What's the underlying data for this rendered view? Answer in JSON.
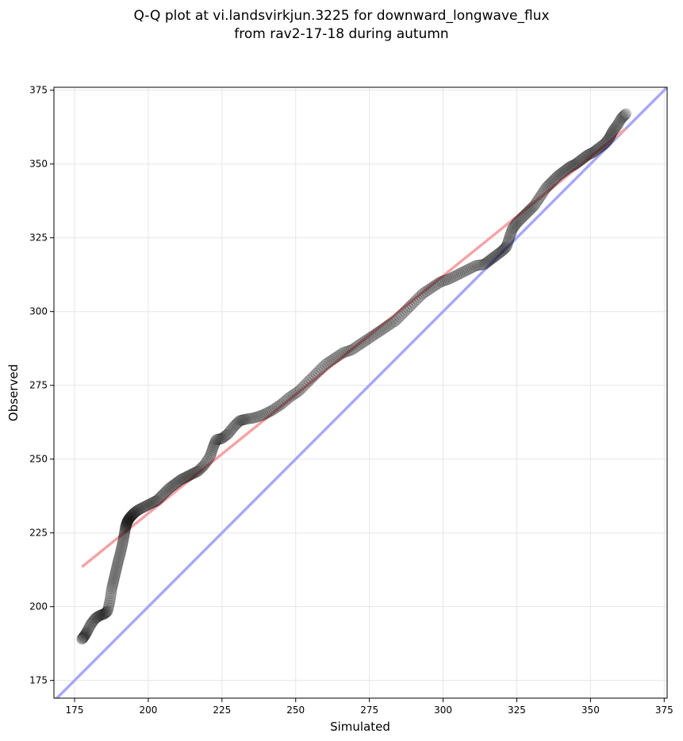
{
  "chart_data": {
    "type": "scatter",
    "title_line1": "Q-Q plot at vi.landsvirkjun.3225 for downward_longwave_flux",
    "title_line2": "from rav2-17-18 during autumn",
    "xlabel": "Simulated",
    "ylabel": "Observed",
    "xlim": [
      168,
      376
    ],
    "ylim": [
      169,
      376
    ],
    "xticks": [
      175,
      200,
      225,
      250,
      275,
      300,
      325,
      350,
      375
    ],
    "yticks": [
      175,
      200,
      225,
      250,
      275,
      300,
      325,
      350,
      375
    ],
    "grid": true,
    "colors": {
      "points": "#000000",
      "fit_line": "#f4a3a6",
      "identity_line": "#a8a8f8",
      "grid": "#e6e6e6"
    },
    "series": [
      {
        "name": "quantiles",
        "x": [
          177.5,
          178.3,
          179.2,
          180.5,
          182.0,
          183.5,
          185.0,
          186.2,
          187.0,
          187.6,
          188.3,
          189.0,
          189.7,
          190.5,
          191.2,
          191.8,
          192.2,
          192.6,
          193.0,
          193.6,
          194.5,
          195.5,
          197.0,
          199.0,
          201.0,
          203.0,
          205.0,
          207.0,
          209.0,
          211.0,
          213.0,
          215.0,
          217.0,
          219.0,
          221.0,
          222.0,
          223.0,
          225.0,
          227.0,
          229.0,
          231.0,
          233.0,
          236.0,
          239.0,
          242.0,
          245.0,
          248.0,
          251.0,
          254.0,
          257.0,
          260.0,
          263.0,
          266.0,
          269.0,
          272.0,
          275.0,
          278.0,
          281.0,
          284.0,
          287.0,
          290.0,
          293.0,
          296.0,
          299.0,
          302.0,
          305.0,
          308.0,
          311.0,
          314.0,
          316.0,
          318.0,
          320.0,
          321.5,
          322.5,
          323.5,
          325.0,
          327.0,
          329.0,
          331.0,
          333.0,
          335.0,
          337.0,
          339.0,
          341.0,
          343.0,
          345.0,
          347.0,
          349.0,
          351.0,
          353.0,
          355.0,
          356.5,
          357.5,
          359.0,
          360.5,
          362.0
        ],
        "y": [
          189.0,
          190.0,
          191.5,
          194.0,
          196.0,
          197.0,
          197.5,
          198.5,
          202.0,
          206.0,
          209.0,
          212.0,
          215.0,
          218.0,
          221.0,
          224.0,
          226.5,
          228.0,
          229.0,
          230.0,
          231.0,
          232.0,
          233.0,
          234.0,
          235.0,
          236.0,
          238.0,
          240.0,
          241.5,
          243.0,
          244.0,
          245.0,
          246.0,
          248.0,
          251.0,
          254.0,
          256.5,
          257.0,
          258.5,
          261.0,
          263.0,
          263.5,
          264.0,
          265.0,
          266.5,
          268.5,
          271.0,
          273.0,
          276.0,
          279.0,
          282.0,
          284.0,
          286.0,
          287.0,
          289.0,
          291.0,
          293.0,
          295.0,
          297.0,
          300.0,
          303.0,
          306.0,
          308.0,
          310.0,
          311.0,
          312.5,
          314.0,
          315.5,
          316.0,
          317.5,
          319.0,
          320.5,
          322.0,
          325.0,
          328.0,
          330.0,
          332.0,
          334.0,
          336.0,
          339.0,
          342.0,
          344.0,
          346.0,
          347.5,
          349.0,
          350.0,
          351.5,
          353.0,
          354.0,
          355.5,
          357.0,
          359.0,
          361.0,
          363.0,
          365.5,
          367.0
        ]
      },
      {
        "name": "fit",
        "x": [
          177.5,
          362.0
        ],
        "y": [
          213.5,
          362.0
        ]
      },
      {
        "name": "identity",
        "x": [
          168,
          376
        ],
        "y": [
          168,
          376
        ]
      }
    ]
  }
}
